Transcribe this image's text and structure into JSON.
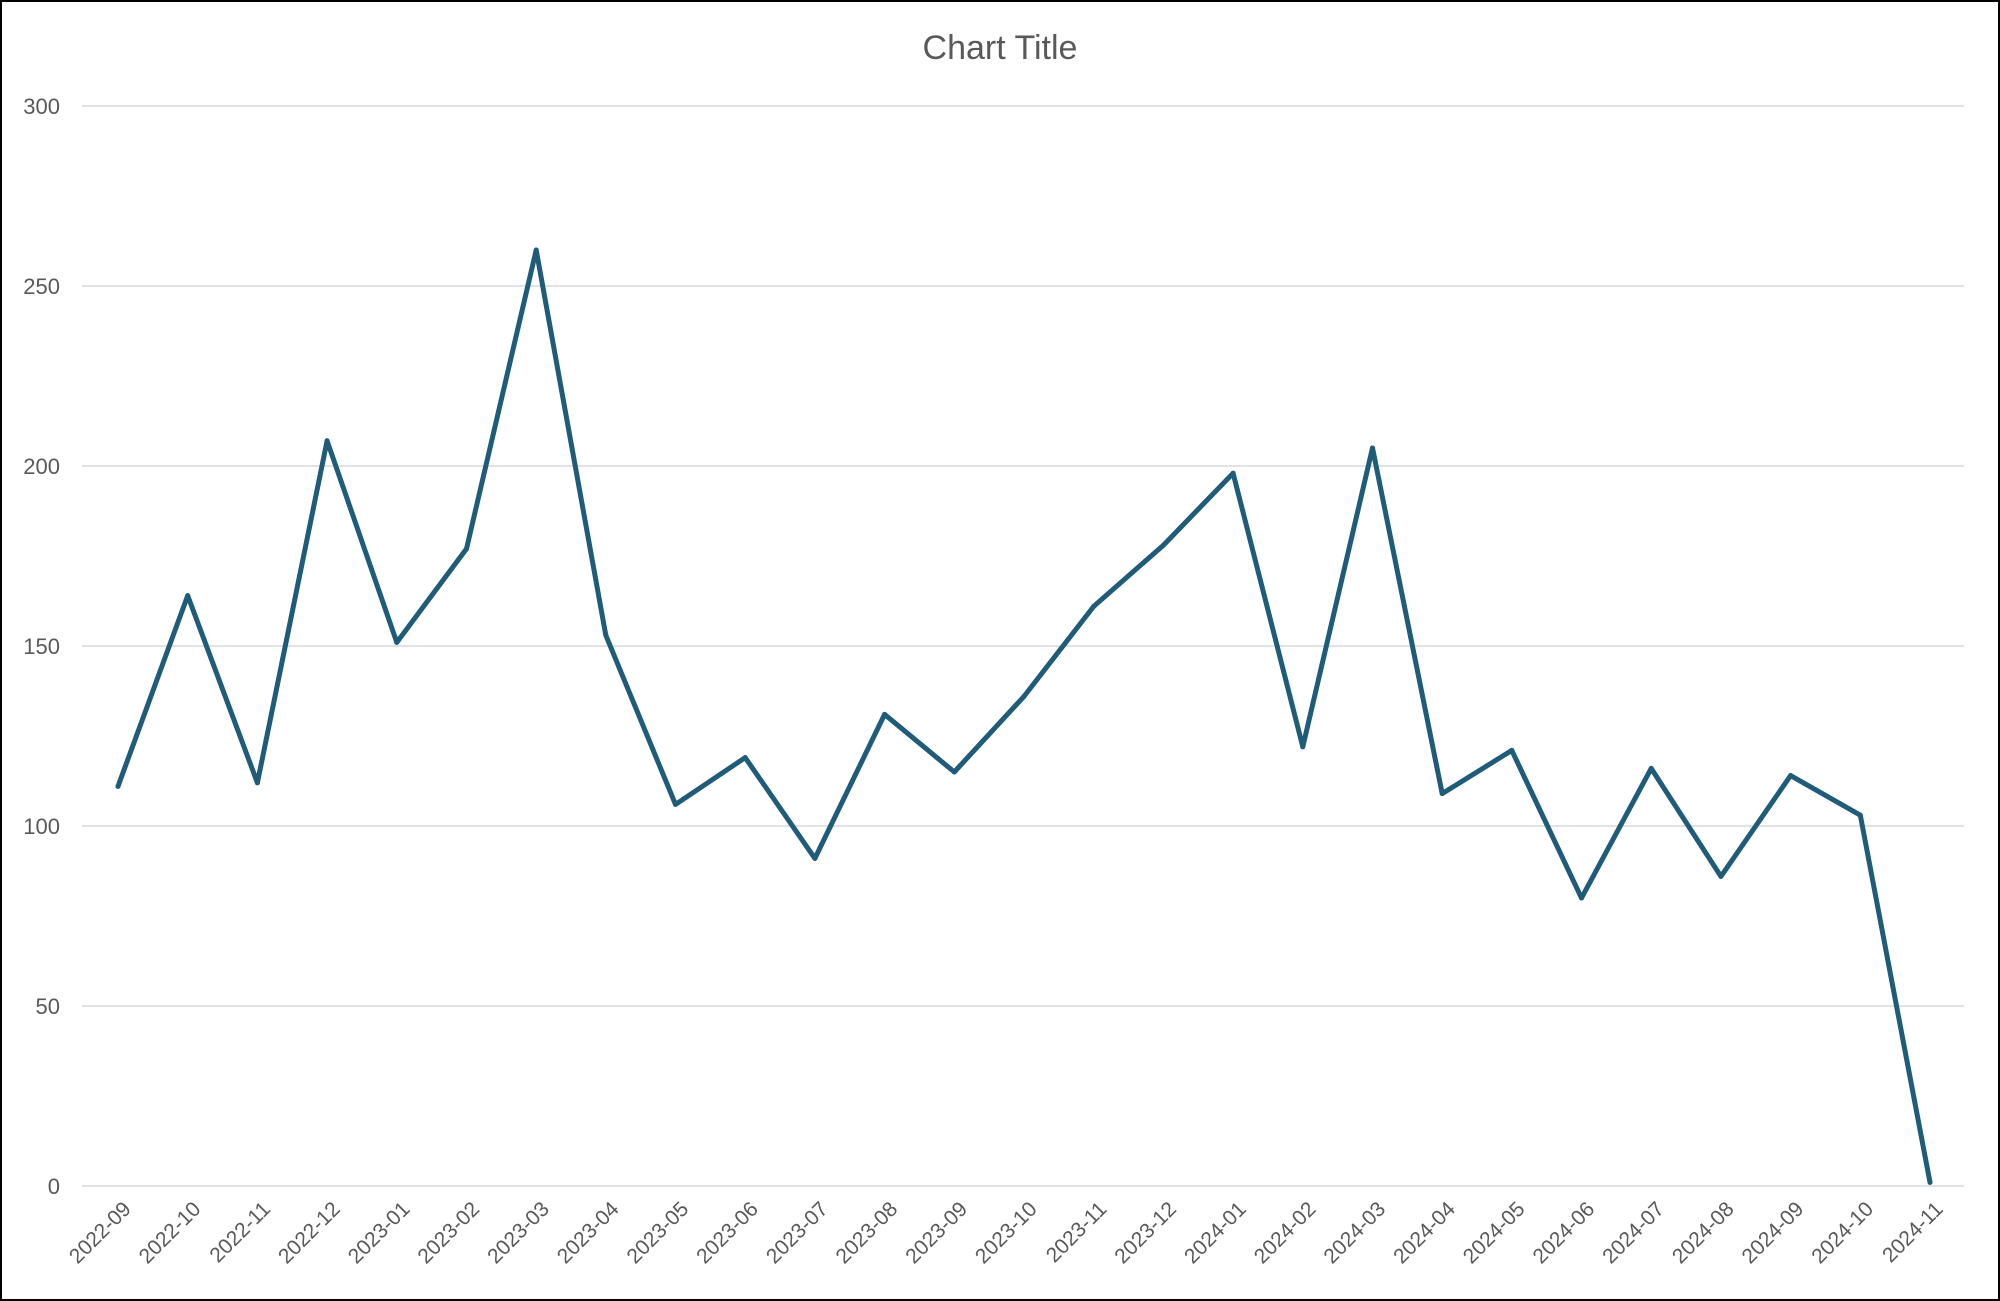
{
  "chart_data": {
    "type": "line",
    "title": "Chart Title",
    "xlabel": "",
    "ylabel": "",
    "ylim": [
      0,
      300
    ],
    "yticks": [
      0,
      50,
      100,
      150,
      200,
      250,
      300
    ],
    "grid": true,
    "legend": "none",
    "categories": [
      "2022-09",
      "2022-10",
      "2022-11",
      "2022-12",
      "2023-01",
      "2023-02",
      "2023-03",
      "2023-04",
      "2023-05",
      "2023-06",
      "2023-07",
      "2023-08",
      "2023-09",
      "2023-10",
      "2023-11",
      "2023-12",
      "2024-01",
      "2024-02",
      "2024-03",
      "2024-04",
      "2024-05",
      "2024-06",
      "2024-07",
      "2024-08",
      "2024-09",
      "2024-10",
      "2024-11"
    ],
    "series": [
      {
        "values": [
          111,
          164,
          112,
          207,
          151,
          177,
          260,
          153,
          106,
          119,
          91,
          131,
          115,
          136,
          161,
          178,
          198,
          122,
          205,
          109,
          121,
          80,
          116,
          86,
          114,
          103,
          1
        ],
        "color": "#1f5c7a"
      }
    ]
  }
}
